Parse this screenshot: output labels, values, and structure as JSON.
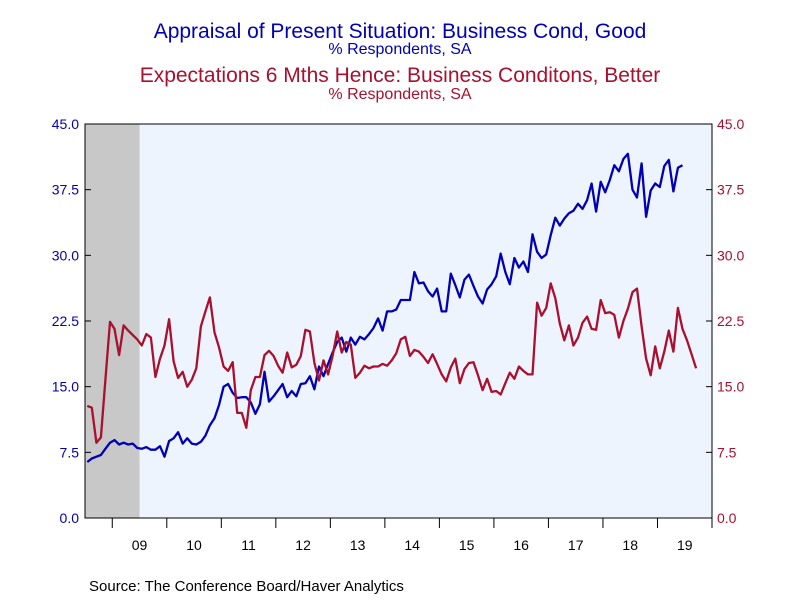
{
  "chart_data": {
    "type": "line",
    "titles": [
      {
        "text": "Appraisal of Present Situation: Business Cond, Good",
        "subtitle": "% Respondents, SA"
      },
      {
        "text": "Expectations 6 Mths Hence: Business Conditons, Better",
        "subtitle": "% Respondents, SA"
      }
    ],
    "source": "Source:  The Conference Board/Haver Analytics",
    "x_range": [
      "2008-07",
      "2019-12"
    ],
    "x_tick_labels": [
      "09",
      "10",
      "11",
      "12",
      "13",
      "14",
      "15",
      "16",
      "17",
      "18",
      "19"
    ],
    "y_left": {
      "ticks": [
        "0.0",
        "7.5",
        "15.0",
        "22.5",
        "30.0",
        "37.5",
        "45.0"
      ],
      "ylim": [
        0,
        45
      ]
    },
    "y_right": {
      "ticks": [
        "0.0",
        "7.5",
        "15.0",
        "22.5",
        "30.0",
        "37.5",
        "45.0"
      ],
      "ylim": [
        0,
        45
      ]
    },
    "recession_shading": {
      "start": "2008-07",
      "end": "2009-06",
      "color": "#c8c8c8"
    },
    "plot_background": "#eef4fe",
    "grid": false,
    "series": [
      {
        "axis": "left",
        "color": "#0000b4",
        "start": "2008-07",
        "values": [
          6.4,
          6.8,
          7.0,
          7.2,
          7.9,
          8.6,
          8.9,
          8.4,
          8.6,
          8.4,
          8.5,
          8.0,
          7.9,
          8.1,
          7.8,
          7.8,
          8.2,
          7.0,
          8.8,
          9.1,
          9.8,
          8.5,
          9.1,
          8.5,
          8.4,
          8.7,
          9.4,
          10.6,
          11.4,
          12.9,
          15.0,
          15.3,
          14.3,
          13.7,
          13.8,
          13.8,
          13.2,
          11.9,
          13.0,
          16.7,
          13.3,
          13.9,
          14.6,
          15.3,
          13.8,
          14.5,
          13.9,
          15.3,
          15.4,
          16.2,
          14.7,
          17.3,
          16.2,
          17.6,
          18.9,
          20.1,
          20.6,
          19.0,
          20.6,
          19.8,
          20.7,
          20.4,
          21.0,
          21.7,
          22.8,
          21.4,
          23.6,
          23.6,
          23.8,
          24.9,
          24.9,
          24.9,
          28.1,
          26.8,
          26.9,
          25.9,
          25.3,
          26.2,
          23.6,
          23.6,
          27.9,
          26.6,
          25.2,
          27.2,
          27.8,
          26.5,
          25.3,
          24.5,
          26.1,
          26.7,
          27.6,
          30.2,
          28.1,
          26.7,
          29.7,
          28.6,
          29.3,
          28.1,
          32.4,
          30.4,
          29.7,
          30.1,
          32.3,
          34.3,
          33.4,
          34.2,
          34.8,
          35.1,
          35.9,
          35.3,
          36.3,
          38.2,
          35.0,
          38.4,
          37.2,
          38.6,
          40.3,
          39.6,
          41.0,
          41.6,
          37.5,
          36.6,
          40.5,
          34.4,
          37.4,
          38.2,
          37.8,
          40.2,
          40.9,
          37.3,
          40.0,
          40.3
        ]
      },
      {
        "axis": "right",
        "color": "#a8102e",
        "start": "2008-07",
        "values": [
          12.8,
          12.6,
          8.6,
          9.2,
          15.8,
          22.4,
          21.6,
          18.6,
          22.0,
          21.4,
          20.9,
          20.4,
          19.7,
          21.0,
          20.6,
          16.1,
          18.2,
          19.7,
          22.7,
          17.9,
          16.0,
          16.7,
          15.0,
          15.8,
          17.1,
          21.9,
          23.6,
          25.2,
          21.2,
          19.5,
          17.3,
          16.8,
          17.8,
          12.0,
          12.0,
          10.3,
          14.6,
          16.1,
          16.1,
          18.6,
          19.1,
          18.5,
          17.4,
          16.6,
          18.9,
          17.2,
          17.5,
          18.5,
          21.5,
          21.3,
          17.7,
          15.7,
          18.0,
          16.4,
          18.5,
          21.3,
          18.9,
          20.1,
          19.8,
          16.0,
          16.6,
          17.4,
          17.1,
          17.3,
          17.3,
          17.6,
          17.4,
          18.0,
          18.8,
          20.4,
          20.7,
          18.5,
          19.2,
          19.0,
          18.4,
          17.7,
          18.7,
          17.6,
          16.4,
          15.6,
          17.2,
          18.2,
          15.4,
          17.0,
          17.7,
          17.8,
          16.3,
          14.6,
          15.9,
          14.4,
          14.5,
          14.1,
          15.4,
          16.6,
          15.9,
          17.3,
          16.8,
          16.4,
          16.4,
          24.6,
          23.1,
          24.0,
          26.8,
          25.1,
          22.2,
          20.3,
          22.0,
          19.7,
          20.6,
          22.3,
          23.0,
          21.6,
          21.5,
          24.9,
          23.4,
          23.5,
          23.2,
          20.6,
          22.5,
          23.9,
          25.8,
          26.2,
          21.9,
          18.2,
          16.3,
          19.6,
          17.1,
          19.0,
          21.4,
          19.0,
          24.0,
          21.6,
          20.3,
          18.7,
          17.1
        ]
      }
    ]
  }
}
